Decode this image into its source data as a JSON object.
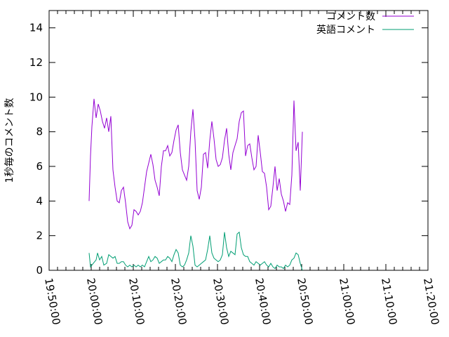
{
  "chart_data": {
    "type": "line",
    "ylabel": "1秒毎のコメント数",
    "xlabel": "",
    "ylim": [
      0,
      15
    ],
    "xlim": [
      "19:50:00",
      "21:20:00"
    ],
    "x_ticks": [
      "19:50:00",
      "20:00:00",
      "20:10:00",
      "20:20:00",
      "20:30:00",
      "20:40:00",
      "20:50:00",
      "21:00:00",
      "21:10:00",
      "21:20:00"
    ],
    "y_ticks": [
      "0",
      "2",
      "4",
      "6",
      "8",
      "10",
      "12",
      "14"
    ],
    "legend_position": "top-right",
    "grid": false,
    "series": [
      {
        "name": "コメント数",
        "color": "#9400d3",
        "points": [
          [
            "19:59:30",
            4.0
          ],
          [
            "19:59:50",
            6.6
          ],
          [
            "20:00:10",
            8.3
          ],
          [
            "20:00:40",
            9.9
          ],
          [
            "20:01:10",
            8.8
          ],
          [
            "20:01:40",
            9.6
          ],
          [
            "20:02:10",
            9.2
          ],
          [
            "20:02:40",
            8.6
          ],
          [
            "20:03:10",
            8.2
          ],
          [
            "20:03:40",
            8.8
          ],
          [
            "20:04:10",
            8.0
          ],
          [
            "20:04:40",
            8.9
          ],
          [
            "20:05:10",
            5.8
          ],
          [
            "20:05:40",
            4.8
          ],
          [
            "20:06:10",
            4.0
          ],
          [
            "20:06:40",
            3.9
          ],
          [
            "20:07:10",
            4.6
          ],
          [
            "20:07:40",
            4.8
          ],
          [
            "20:08:10",
            3.9
          ],
          [
            "20:08:40",
            2.8
          ],
          [
            "20:09:10",
            2.4
          ],
          [
            "20:09:40",
            2.6
          ],
          [
            "20:10:10",
            3.5
          ],
          [
            "20:10:40",
            3.4
          ],
          [
            "20:11:10",
            3.2
          ],
          [
            "20:11:40",
            3.4
          ],
          [
            "20:12:10",
            3.9
          ],
          [
            "20:12:40",
            4.8
          ],
          [
            "20:13:10",
            5.7
          ],
          [
            "20:13:40",
            6.2
          ],
          [
            "20:14:10",
            6.7
          ],
          [
            "20:14:40",
            6.1
          ],
          [
            "20:15:10",
            5.2
          ],
          [
            "20:15:40",
            4.8
          ],
          [
            "20:16:10",
            4.3
          ],
          [
            "20:16:40",
            6.0
          ],
          [
            "20:17:10",
            6.9
          ],
          [
            "20:17:40",
            6.9
          ],
          [
            "20:18:10",
            7.2
          ],
          [
            "20:18:40",
            6.6
          ],
          [
            "20:19:10",
            6.8
          ],
          [
            "20:19:40",
            7.5
          ],
          [
            "20:20:10",
            8.1
          ],
          [
            "20:20:40",
            8.4
          ],
          [
            "20:21:10",
            6.8
          ],
          [
            "20:21:40",
            5.8
          ],
          [
            "20:22:10",
            5.5
          ],
          [
            "20:22:40",
            5.2
          ],
          [
            "20:23:10",
            6.0
          ],
          [
            "20:23:40",
            8.0
          ],
          [
            "20:24:10",
            9.3
          ],
          [
            "20:24:40",
            7.5
          ],
          [
            "20:25:10",
            4.6
          ],
          [
            "20:25:40",
            4.1
          ],
          [
            "20:26:10",
            4.8
          ],
          [
            "20:26:40",
            6.7
          ],
          [
            "20:27:10",
            6.8
          ],
          [
            "20:27:40",
            5.9
          ],
          [
            "20:28:10",
            7.5
          ],
          [
            "20:28:40",
            8.6
          ],
          [
            "20:29:10",
            7.6
          ],
          [
            "20:29:40",
            6.4
          ],
          [
            "20:30:10",
            6.0
          ],
          [
            "20:30:40",
            6.1
          ],
          [
            "20:31:10",
            6.5
          ],
          [
            "20:31:40",
            7.5
          ],
          [
            "20:32:10",
            8.2
          ],
          [
            "20:32:40",
            6.7
          ],
          [
            "20:33:10",
            5.8
          ],
          [
            "20:33:40",
            6.8
          ],
          [
            "20:34:10",
            7.2
          ],
          [
            "20:34:40",
            7.6
          ],
          [
            "20:35:10",
            8.6
          ],
          [
            "20:35:40",
            9.1
          ],
          [
            "20:36:10",
            9.2
          ],
          [
            "20:36:40",
            6.6
          ],
          [
            "20:37:10",
            7.2
          ],
          [
            "20:37:40",
            7.3
          ],
          [
            "20:38:10",
            6.5
          ],
          [
            "20:38:40",
            5.8
          ],
          [
            "20:39:10",
            6.0
          ],
          [
            "20:39:40",
            7.8
          ],
          [
            "20:40:10",
            6.8
          ],
          [
            "20:40:40",
            5.7
          ],
          [
            "20:41:10",
            5.6
          ],
          [
            "20:41:40",
            4.8
          ],
          [
            "20:42:10",
            3.5
          ],
          [
            "20:42:40",
            3.7
          ],
          [
            "20:43:10",
            4.8
          ],
          [
            "20:43:40",
            6.0
          ],
          [
            "20:44:10",
            4.6
          ],
          [
            "20:44:40",
            5.3
          ],
          [
            "20:45:10",
            4.4
          ],
          [
            "20:45:40",
            4.0
          ],
          [
            "20:46:10",
            3.4
          ],
          [
            "20:46:40",
            3.9
          ],
          [
            "20:47:10",
            3.8
          ],
          [
            "20:47:40",
            5.5
          ],
          [
            "20:48:10",
            9.8
          ],
          [
            "20:48:40",
            6.9
          ],
          [
            "20:49:10",
            7.4
          ],
          [
            "20:49:40",
            4.6
          ],
          [
            "20:50:10",
            8.0
          ]
        ]
      },
      {
        "name": "英語コメント",
        "color": "#009e73",
        "points": [
          [
            "19:59:30",
            1.0
          ],
          [
            "19:59:50",
            0.2
          ],
          [
            "20:00:30",
            0.4
          ],
          [
            "20:01:10",
            0.6
          ],
          [
            "20:01:30",
            1.0
          ],
          [
            "20:02:00",
            0.6
          ],
          [
            "20:02:30",
            0.8
          ],
          [
            "20:03:00",
            0.3
          ],
          [
            "20:03:40",
            0.4
          ],
          [
            "20:04:10",
            0.9
          ],
          [
            "20:04:40",
            0.8
          ],
          [
            "20:05:10",
            0.7
          ],
          [
            "20:05:40",
            0.8
          ],
          [
            "20:06:10",
            0.4
          ],
          [
            "20:06:40",
            0.4
          ],
          [
            "20:07:10",
            0.5
          ],
          [
            "20:07:40",
            0.5
          ],
          [
            "20:08:10",
            0.3
          ],
          [
            "20:08:40",
            0.2
          ],
          [
            "20:09:10",
            0.3
          ],
          [
            "20:09:40",
            0.2
          ],
          [
            "20:10:10",
            0.3
          ],
          [
            "20:10:40",
            0.2
          ],
          [
            "20:11:10",
            0.3
          ],
          [
            "20:11:40",
            0.2
          ],
          [
            "20:12:10",
            0.3
          ],
          [
            "20:12:40",
            0.2
          ],
          [
            "20:13:10",
            0.5
          ],
          [
            "20:13:40",
            0.8
          ],
          [
            "20:14:10",
            0.5
          ],
          [
            "20:14:40",
            0.6
          ],
          [
            "20:15:10",
            0.8
          ],
          [
            "20:15:40",
            0.7
          ],
          [
            "20:16:10",
            0.4
          ],
          [
            "20:16:40",
            0.5
          ],
          [
            "20:17:10",
            0.6
          ],
          [
            "20:17:40",
            0.6
          ],
          [
            "20:18:10",
            0.8
          ],
          [
            "20:18:40",
            0.7
          ],
          [
            "20:19:10",
            0.5
          ],
          [
            "20:19:40",
            0.9
          ],
          [
            "20:20:10",
            1.2
          ],
          [
            "20:20:40",
            1.0
          ],
          [
            "20:21:10",
            0.3
          ],
          [
            "20:21:40",
            0.2
          ],
          [
            "20:22:10",
            0.3
          ],
          [
            "20:22:40",
            0.6
          ],
          [
            "20:23:10",
            1.0
          ],
          [
            "20:23:40",
            2.0
          ],
          [
            "20:24:10",
            1.4
          ],
          [
            "20:24:40",
            0.3
          ],
          [
            "20:25:10",
            0.2
          ],
          [
            "20:25:40",
            0.3
          ],
          [
            "20:26:10",
            0.4
          ],
          [
            "20:26:40",
            0.5
          ],
          [
            "20:27:10",
            0.6
          ],
          [
            "20:27:40",
            1.2
          ],
          [
            "20:28:10",
            2.0
          ],
          [
            "20:28:40",
            1.0
          ],
          [
            "20:29:10",
            0.7
          ],
          [
            "20:29:40",
            0.6
          ],
          [
            "20:30:10",
            0.5
          ],
          [
            "20:30:40",
            0.6
          ],
          [
            "20:31:10",
            0.9
          ],
          [
            "20:31:40",
            2.2
          ],
          [
            "20:32:10",
            1.3
          ],
          [
            "20:32:40",
            0.8
          ],
          [
            "20:33:10",
            1.1
          ],
          [
            "20:33:40",
            1.0
          ],
          [
            "20:34:10",
            0.9
          ],
          [
            "20:34:40",
            2.1
          ],
          [
            "20:35:10",
            2.2
          ],
          [
            "20:35:40",
            1.3
          ],
          [
            "20:36:10",
            0.9
          ],
          [
            "20:36:40",
            0.8
          ],
          [
            "20:37:10",
            0.8
          ],
          [
            "20:37:40",
            0.5
          ],
          [
            "20:38:10",
            0.4
          ],
          [
            "20:38:40",
            0.3
          ],
          [
            "20:39:10",
            0.5
          ],
          [
            "20:39:40",
            0.4
          ],
          [
            "20:40:10",
            0.3
          ],
          [
            "20:40:40",
            0.4
          ],
          [
            "20:41:10",
            0.5
          ],
          [
            "20:41:40",
            0.3
          ],
          [
            "20:42:10",
            0.2
          ],
          [
            "20:42:40",
            0.4
          ],
          [
            "20:43:10",
            0.2
          ],
          [
            "20:43:40",
            0.1
          ],
          [
            "20:44:10",
            0.3
          ],
          [
            "20:44:40",
            0.2
          ],
          [
            "20:45:10",
            0.2
          ],
          [
            "20:45:40",
            0.1
          ],
          [
            "20:46:10",
            0.3
          ],
          [
            "20:46:40",
            0.2
          ],
          [
            "20:47:10",
            0.3
          ],
          [
            "20:47:40",
            0.6
          ],
          [
            "20:48:10",
            0.7
          ],
          [
            "20:48:40",
            1.0
          ],
          [
            "20:49:10",
            0.9
          ],
          [
            "20:49:40",
            0.4
          ],
          [
            "20:50:10",
            0.0
          ]
        ]
      }
    ]
  }
}
